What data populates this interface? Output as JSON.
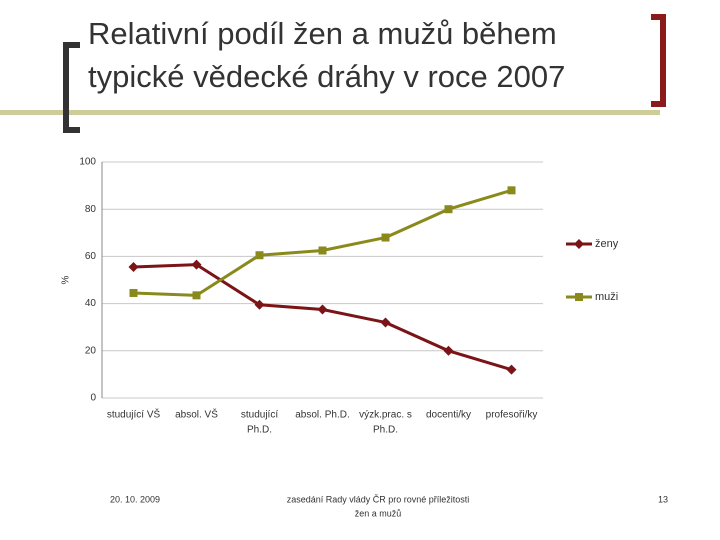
{
  "slide": {
    "title": [
      "Relativní podíl žen a mužů během",
      "typické vědecké dráhy v roce 2007"
    ],
    "footer": {
      "date": "20. 10. 2009",
      "center": [
        "zasedání Rady vlády ČR pro rovné příležitosti",
        "žen a mužů"
      ],
      "page": "13"
    }
  },
  "chart_data": {
    "type": "line",
    "y_label": "%",
    "categories": [
      [
        "studující VŠ"
      ],
      [
        "absol. VŠ"
      ],
      [
        "studující",
        "Ph.D."
      ],
      [
        "absol. Ph.D."
      ],
      [
        "výzk.prac. s",
        "Ph.D."
      ],
      [
        "docenti/ky"
      ],
      [
        "profesoři/ky"
      ]
    ],
    "series": [
      {
        "name": "ženy",
        "color": "#7b1416",
        "marker": "diamond",
        "values": [
          55.5,
          56.5,
          39.5,
          37.5,
          32,
          20,
          12
        ]
      },
      {
        "name": "muži",
        "color": "#8a8a1c",
        "marker": "square",
        "values": [
          44.5,
          43.5,
          60.5,
          62.5,
          68,
          80,
          88
        ]
      }
    ],
    "ylim": [
      0,
      100
    ],
    "yticks": [
      0,
      20,
      40,
      60,
      80,
      100
    ],
    "grid": true,
    "legend": "right"
  }
}
